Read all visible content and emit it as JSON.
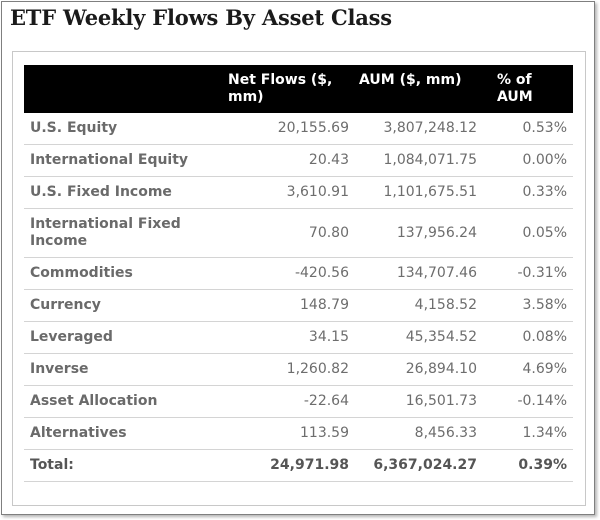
{
  "title": "ETF Weekly Flows By Asset Class",
  "table": {
    "headers": [
      "",
      "Net Flows ($, mm)",
      "AUM ($, mm)",
      "% of AUM"
    ],
    "rows": [
      [
        "U.S. Equity",
        "20,155.69",
        "3,807,248.12",
        "0.53%"
      ],
      [
        "International Equity",
        "20.43",
        "1,084,071.75",
        "0.00%"
      ],
      [
        "U.S. Fixed Income",
        "3,610.91",
        "1,101,675.51",
        "0.33%"
      ],
      [
        "International Fixed Income",
        "70.80",
        "137,956.24",
        "0.05%"
      ],
      [
        "Commodities",
        "-420.56",
        "134,707.46",
        "-0.31%"
      ],
      [
        "Currency",
        "148.79",
        "4,158.52",
        "3.58%"
      ],
      [
        "Leveraged",
        "34.15",
        "45,354.52",
        "0.08%"
      ],
      [
        "Inverse",
        "1,260.82",
        "26,894.10",
        "4.69%"
      ],
      [
        "Asset Allocation",
        "-22.64",
        "16,501.73",
        "-0.14%"
      ],
      [
        "Alternatives",
        "113.59",
        "8,456.33",
        "1.34%"
      ]
    ],
    "total": [
      "Total:",
      "24,971.98",
      "6,367,024.27",
      "0.39%"
    ]
  }
}
